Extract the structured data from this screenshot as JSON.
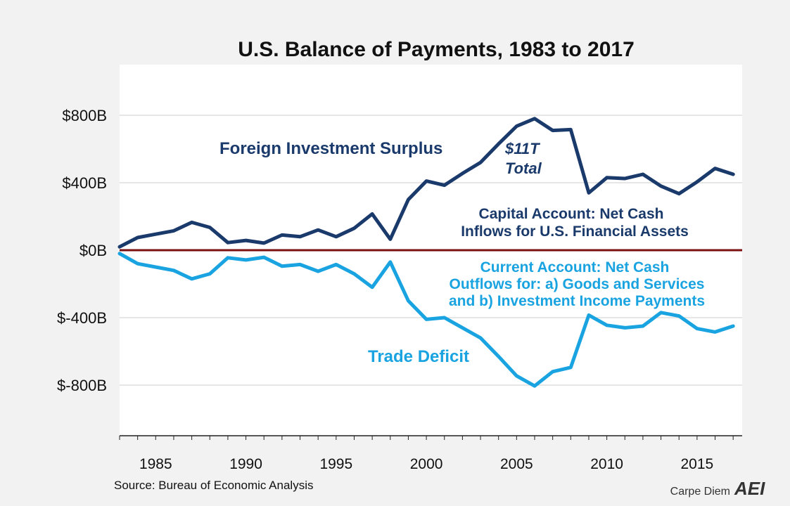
{
  "chart_data": {
    "type": "line",
    "title": "U.S. Balance of Payments, 1983 to 2017",
    "xlabel": "",
    "ylabel": "",
    "xlim": [
      1983,
      2017.5
    ],
    "ylim": [
      -1100,
      1100
    ],
    "yticks": [
      {
        "value": 800,
        "label": "$800B"
      },
      {
        "value": 400,
        "label": "$400B"
      },
      {
        "value": 0,
        "label": "$0B"
      },
      {
        "value": -400,
        "label": "$-400B"
      },
      {
        "value": -800,
        "label": "$-800B"
      }
    ],
    "xticks": [
      1985,
      1990,
      1995,
      2000,
      2005,
      2010,
      2015
    ],
    "grid": true,
    "x": [
      1983,
      1984,
      1985,
      1986,
      1987,
      1988,
      1989,
      1990,
      1991,
      1992,
      1993,
      1994,
      1995,
      1996,
      1997,
      1998,
      1999,
      2000,
      2001,
      2002,
      2003,
      2004,
      2005,
      2006,
      2007,
      2008,
      2009,
      2010,
      2011,
      2012,
      2013,
      2014,
      2015,
      2016,
      2017
    ],
    "series": [
      {
        "color": "#1a3a6b",
        "values": [
          20,
          75,
          95,
          115,
          165,
          135,
          45,
          58,
          42,
          90,
          80,
          120,
          80,
          130,
          215,
          65,
          300,
          410,
          385,
          455,
          520,
          630,
          735,
          780,
          710,
          715,
          340,
          430,
          425,
          450,
          380,
          335,
          405,
          485,
          450
        ]
      },
      {
        "color": "#19a3e0",
        "values": [
          -20,
          -80,
          -100,
          -120,
          -170,
          -140,
          -45,
          -58,
          -42,
          -95,
          -85,
          -125,
          -85,
          -140,
          -220,
          -70,
          -300,
          -410,
          -400,
          -460,
          -520,
          -630,
          -745,
          -805,
          -720,
          -695,
          -385,
          -445,
          -460,
          -450,
          -370,
          -390,
          -465,
          -485,
          -450
        ]
      }
    ],
    "annotations": {
      "surplus": "Foreign Investment Surplus",
      "total_line1": "$11T",
      "total_line2": "Total",
      "capital_line1": "Capital Account: Net Cash",
      "capital_line2": "Inflows for U.S. Financial Assets",
      "current_line1": "Current Account: Net Cash",
      "current_line2": "Outflows for: a) Goods and Services",
      "current_line3": "and b) Investment Income Payments",
      "deficit": "Trade Deficit"
    },
    "source": "Source: Bureau of Economic Analysis",
    "zero_line_color": "#7a1010"
  },
  "branding": {
    "text": "Carpe Diem",
    "logo": "AEI"
  }
}
